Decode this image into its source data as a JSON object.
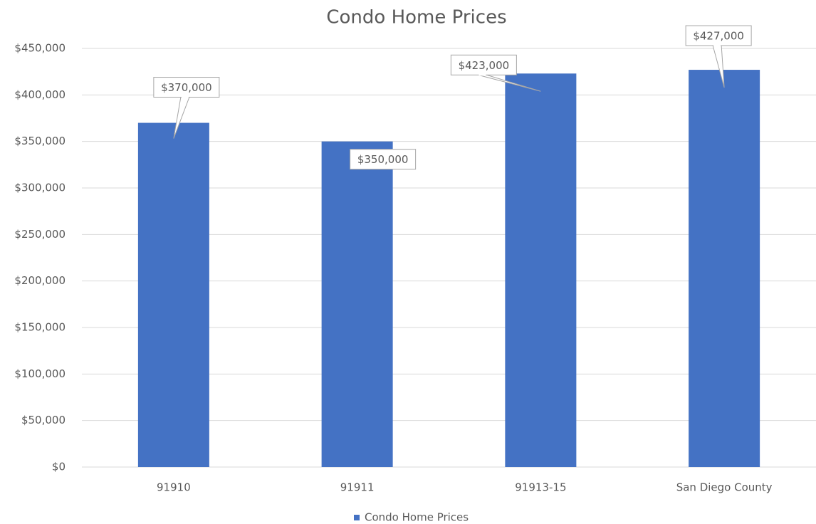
{
  "chart_data": {
    "type": "bar",
    "title": "Condo Home Prices",
    "categories": [
      "91910",
      "91911",
      "91913-15",
      "San Diego County"
    ],
    "series": [
      {
        "name": "Condo Home Prices",
        "color": "#4472c4",
        "values": [
          370000,
          350000,
          423000,
          427000
        ],
        "value_labels": [
          "$370,000",
          "$350,000",
          "$423,000",
          "$427,000"
        ]
      }
    ],
    "ylim": [
      0,
      450000
    ],
    "yticks": [
      {
        "value": 0,
        "label": "$0"
      },
      {
        "value": 50000,
        "label": "$50,000"
      },
      {
        "value": 100000,
        "label": "$100,000"
      },
      {
        "value": 150000,
        "label": "$150,000"
      },
      {
        "value": 200000,
        "label": "$200,000"
      },
      {
        "value": 250000,
        "label": "$250,000"
      },
      {
        "value": 300000,
        "label": "$300,000"
      },
      {
        "value": 350000,
        "label": "$350,000"
      },
      {
        "value": 400000,
        "label": "$400,000"
      },
      {
        "value": 450000,
        "label": "$450,000"
      }
    ],
    "grid": true,
    "legend": "bottom"
  }
}
